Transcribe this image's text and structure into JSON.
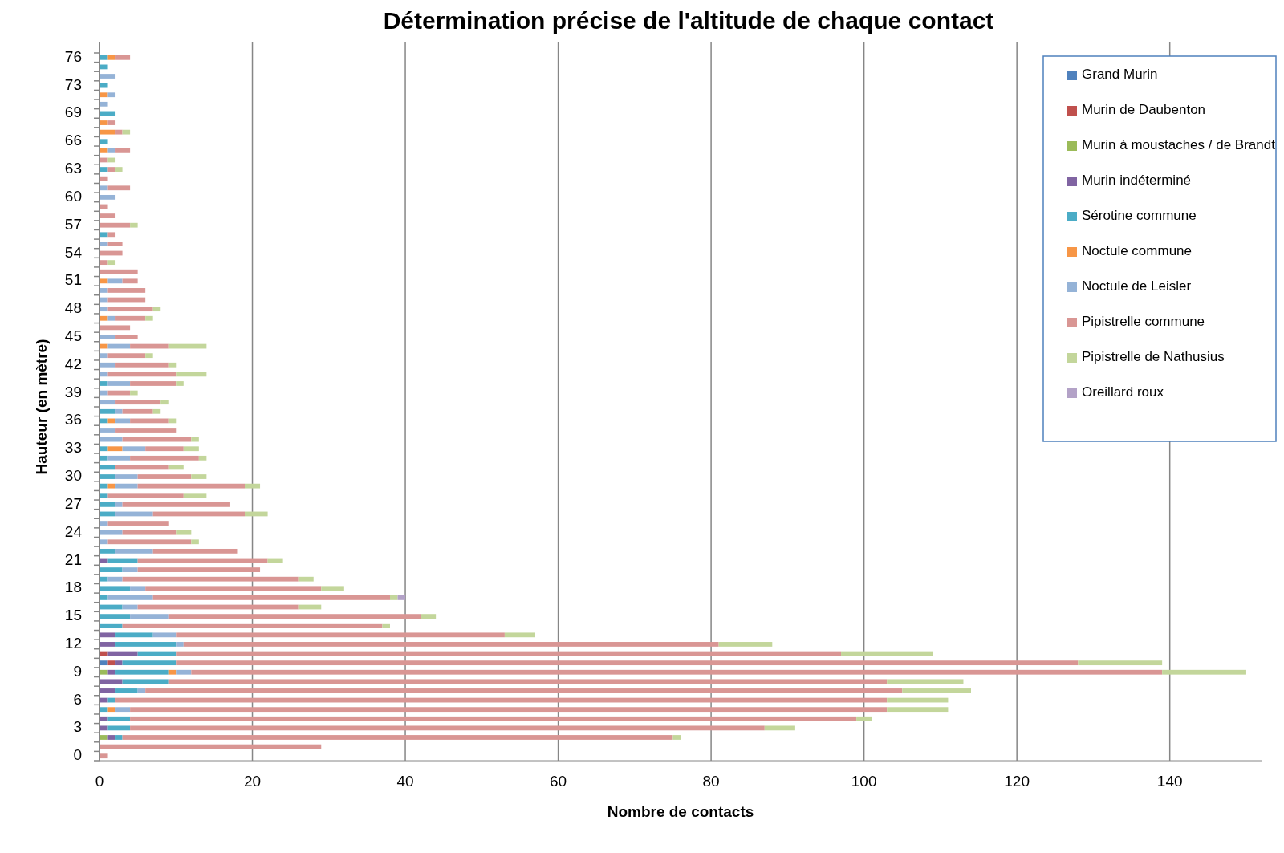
{
  "chart_data": {
    "type": "bar",
    "orientation": "horizontal",
    "stacked": true,
    "title": "Détermination précise de l'altitude de chaque contact",
    "xlabel": "Nombre de contacts",
    "ylabel": "Hauteur (en mètre)",
    "categories": [
      "76",
      null,
      null,
      "73",
      null,
      null,
      "69",
      null,
      null,
      "66",
      null,
      null,
      "63",
      null,
      null,
      "60",
      null,
      null,
      "57",
      null,
      null,
      "54",
      null,
      null,
      "51",
      null,
      null,
      "48",
      null,
      null,
      "45",
      null,
      null,
      "42",
      null,
      null,
      "39",
      null,
      null,
      "36",
      null,
      null,
      "33",
      null,
      null,
      "30",
      null,
      null,
      "27",
      null,
      null,
      "24",
      null,
      null,
      "21",
      null,
      null,
      "18",
      null,
      null,
      "15",
      null,
      null,
      "12",
      null,
      null,
      "9",
      null,
      null,
      "6",
      null,
      null,
      "3",
      null,
      null,
      "0"
    ],
    "xlim": [
      0,
      152
    ],
    "xticks": [
      0,
      20,
      40,
      60,
      80,
      100,
      120,
      140
    ],
    "grid": "x",
    "legend": "top right",
    "series": [
      {
        "name": "Grand Murin",
        "color": "#4f81bd",
        "values": [
          null,
          null,
          null,
          null,
          null,
          null,
          null,
          null,
          null,
          null,
          null,
          null,
          null,
          null,
          null,
          null,
          null,
          null,
          null,
          null,
          null,
          null,
          null,
          null,
          null,
          null,
          null,
          null,
          null,
          null,
          null,
          null,
          null,
          null,
          null,
          null,
          null,
          null,
          null,
          null,
          null,
          null,
          null,
          null,
          null,
          null,
          null,
          null,
          null,
          null,
          null,
          null,
          null,
          null,
          null,
          null,
          null,
          null,
          null,
          null,
          null,
          null,
          null,
          null,
          null,
          1,
          null,
          null,
          null,
          null,
          null,
          null,
          null,
          null,
          null,
          null
        ]
      },
      {
        "name": "Murin de Daubenton",
        "color": "#c0504d",
        "values": [
          null,
          null,
          null,
          null,
          null,
          null,
          null,
          null,
          null,
          null,
          null,
          null,
          null,
          null,
          null,
          null,
          null,
          null,
          null,
          null,
          null,
          null,
          null,
          null,
          null,
          null,
          null,
          null,
          null,
          null,
          null,
          null,
          null,
          null,
          null,
          null,
          null,
          null,
          null,
          null,
          null,
          null,
          null,
          null,
          null,
          null,
          null,
          null,
          null,
          null,
          null,
          null,
          null,
          null,
          null,
          null,
          null,
          null,
          null,
          null,
          null,
          null,
          null,
          null,
          1,
          1,
          null,
          null,
          null,
          null,
          null,
          null,
          null,
          null,
          null,
          null
        ]
      },
      {
        "name": "Murin à moustaches / de Brandt",
        "color": "#9bbb59",
        "values": [
          null,
          null,
          null,
          null,
          null,
          null,
          null,
          null,
          null,
          null,
          null,
          null,
          null,
          null,
          null,
          null,
          null,
          null,
          null,
          null,
          null,
          null,
          null,
          null,
          null,
          null,
          null,
          null,
          null,
          null,
          null,
          null,
          null,
          null,
          null,
          null,
          null,
          null,
          null,
          null,
          null,
          null,
          null,
          null,
          null,
          null,
          null,
          null,
          null,
          null,
          null,
          null,
          null,
          null,
          null,
          null,
          null,
          null,
          null,
          null,
          null,
          null,
          null,
          null,
          null,
          null,
          1,
          null,
          null,
          null,
          null,
          null,
          null,
          1,
          null,
          null
        ]
      },
      {
        "name": "Murin indéterminé",
        "color": "#8064a2",
        "values": [
          null,
          null,
          null,
          null,
          null,
          null,
          null,
          null,
          null,
          null,
          null,
          null,
          null,
          null,
          null,
          null,
          null,
          null,
          null,
          null,
          null,
          null,
          null,
          null,
          null,
          null,
          null,
          null,
          null,
          null,
          null,
          null,
          null,
          null,
          null,
          null,
          null,
          null,
          null,
          null,
          null,
          null,
          null,
          null,
          null,
          null,
          null,
          null,
          null,
          null,
          null,
          null,
          null,
          null,
          1,
          null,
          null,
          null,
          null,
          null,
          null,
          null,
          2,
          2,
          4,
          1,
          1,
          3,
          2,
          1,
          null,
          1,
          1,
          1,
          null,
          null
        ]
      },
      {
        "name": "Sérotine commune",
        "color": "#4bacc6",
        "values": [
          1,
          1,
          null,
          1,
          null,
          null,
          2,
          null,
          null,
          1,
          null,
          null,
          1,
          null,
          null,
          null,
          null,
          null,
          null,
          1,
          null,
          null,
          null,
          null,
          null,
          null,
          null,
          null,
          null,
          null,
          null,
          null,
          null,
          null,
          null,
          1,
          null,
          null,
          2,
          1,
          null,
          null,
          1,
          1,
          2,
          2,
          1,
          1,
          2,
          2,
          null,
          null,
          null,
          2,
          4,
          3,
          1,
          4,
          1,
          3,
          4,
          3,
          5,
          8,
          5,
          7,
          7,
          6,
          3,
          1,
          1,
          3,
          3,
          1,
          null,
          null
        ]
      },
      {
        "name": "Noctule commune",
        "color": "#f79646",
        "values": [
          1,
          null,
          null,
          null,
          1,
          null,
          null,
          1,
          2,
          null,
          1,
          null,
          null,
          null,
          null,
          null,
          null,
          null,
          null,
          null,
          null,
          null,
          null,
          null,
          1,
          null,
          null,
          null,
          1,
          null,
          null,
          1,
          null,
          null,
          null,
          null,
          null,
          null,
          null,
          1,
          null,
          null,
          2,
          null,
          null,
          null,
          1,
          null,
          null,
          null,
          null,
          null,
          null,
          null,
          null,
          null,
          null,
          null,
          null,
          null,
          null,
          null,
          null,
          null,
          null,
          null,
          1,
          null,
          null,
          null,
          1,
          null,
          null,
          null,
          null,
          null
        ]
      },
      {
        "name": "Noctule de Leisler",
        "color": "#95b3d7",
        "values": [
          null,
          null,
          2,
          null,
          1,
          1,
          null,
          null,
          null,
          null,
          1,
          null,
          null,
          null,
          1,
          2,
          null,
          null,
          null,
          null,
          1,
          null,
          null,
          null,
          2,
          1,
          1,
          1,
          1,
          null,
          2,
          3,
          1,
          2,
          1,
          3,
          1,
          2,
          1,
          2,
          2,
          3,
          3,
          3,
          null,
          3,
          3,
          null,
          1,
          5,
          1,
          3,
          1,
          5,
          null,
          2,
          2,
          2,
          6,
          2,
          5,
          null,
          3,
          1,
          null,
          null,
          2,
          null,
          1,
          null,
          2,
          null,
          null,
          null,
          null,
          null
        ]
      },
      {
        "name": "Pipistrelle commune",
        "color": "#d99694",
        "values": [
          2,
          null,
          null,
          null,
          null,
          null,
          null,
          1,
          1,
          null,
          2,
          1,
          1,
          1,
          3,
          null,
          1,
          2,
          4,
          1,
          2,
          3,
          1,
          5,
          2,
          5,
          5,
          6,
          4,
          4,
          3,
          5,
          5,
          7,
          9,
          6,
          3,
          6,
          4,
          5,
          8,
          9,
          5,
          9,
          7,
          7,
          14,
          10,
          14,
          12,
          8,
          7,
          11,
          11,
          17,
          16,
          23,
          23,
          31,
          21,
          33,
          34,
          43,
          70,
          87,
          118,
          127,
          94,
          99,
          101,
          99,
          95,
          83,
          72,
          29,
          1
        ]
      },
      {
        "name": "Pipistrelle de Nathusius",
        "color": "#c3d69b",
        "values": [
          null,
          null,
          null,
          null,
          null,
          null,
          null,
          null,
          1,
          null,
          null,
          1,
          1,
          null,
          null,
          null,
          null,
          null,
          1,
          null,
          null,
          null,
          1,
          null,
          null,
          null,
          null,
          1,
          1,
          null,
          null,
          5,
          1,
          1,
          4,
          1,
          1,
          1,
          1,
          1,
          null,
          1,
          2,
          1,
          2,
          2,
          2,
          3,
          null,
          3,
          null,
          2,
          1,
          null,
          2,
          null,
          2,
          3,
          1,
          3,
          2,
          1,
          4,
          7,
          12,
          11,
          11,
          10,
          9,
          8,
          8,
          2,
          4,
          1,
          null,
          null
        ]
      },
      {
        "name": "Oreillard roux",
        "color": "#b3a2c7",
        "values": [
          null,
          null,
          null,
          null,
          null,
          null,
          null,
          null,
          null,
          null,
          null,
          null,
          null,
          null,
          null,
          null,
          null,
          null,
          null,
          null,
          null,
          null,
          null,
          null,
          null,
          null,
          null,
          null,
          null,
          null,
          null,
          null,
          null,
          null,
          null,
          null,
          null,
          null,
          null,
          null,
          null,
          null,
          null,
          null,
          null,
          null,
          null,
          null,
          null,
          null,
          null,
          null,
          null,
          null,
          null,
          null,
          null,
          null,
          1,
          null,
          null,
          null,
          null,
          null,
          null,
          null,
          null,
          null,
          null,
          null,
          null,
          null,
          null,
          null,
          null,
          null
        ]
      }
    ]
  }
}
